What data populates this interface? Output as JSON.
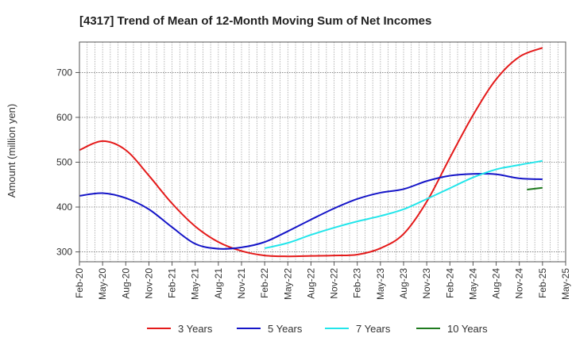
{
  "chart_data": {
    "type": "line",
    "title": "[4317]  Trend of Mean of 12-Month Moving Sum of Net Incomes",
    "ylabel": "Amount (million yen)",
    "xlabel": "",
    "ylim": [
      278,
      768
    ],
    "yticks": [
      300,
      400,
      500,
      600,
      700
    ],
    "x_start": "Feb-20",
    "x_end": "May-25",
    "xtick_labels": [
      "Feb-20",
      "May-20",
      "Aug-20",
      "Nov-20",
      "Feb-21",
      "May-21",
      "Aug-21",
      "Nov-21",
      "Feb-22",
      "May-22",
      "Aug-22",
      "Nov-22",
      "Feb-23",
      "May-23",
      "Aug-23",
      "Nov-23",
      "Feb-24",
      "May-24",
      "Aug-24",
      "Nov-24",
      "Feb-25",
      "May-25"
    ],
    "grid": true,
    "legend_position": "bottom",
    "series": [
      {
        "name": "3 Years",
        "color": "#e41a1a",
        "x": [
          "Feb-20",
          "May-20",
          "Aug-20",
          "Nov-20",
          "Feb-21",
          "May-21",
          "Aug-21",
          "Nov-21",
          "Feb-22",
          "May-22",
          "Aug-22",
          "Nov-22",
          "Feb-23",
          "May-23",
          "Aug-23",
          "Nov-23",
          "Feb-24",
          "May-24",
          "Aug-24",
          "Nov-24",
          "Feb-25"
        ],
        "values": [
          527,
          547,
          527,
          470,
          408,
          357,
          322,
          302,
          292,
          290,
          291,
          292,
          294,
          308,
          340,
          412,
          510,
          605,
          685,
          735,
          755
        ]
      },
      {
        "name": "5 Years",
        "color": "#1515c8",
        "x": [
          "Feb-20",
          "May-20",
          "Aug-20",
          "Nov-20",
          "Feb-21",
          "May-21",
          "Aug-21",
          "Nov-21",
          "Feb-22",
          "May-22",
          "Aug-22",
          "Nov-22",
          "Feb-23",
          "May-23",
          "Aug-23",
          "Nov-23",
          "Feb-24",
          "May-24",
          "Aug-24",
          "Nov-24",
          "Feb-25"
        ],
        "values": [
          425,
          431,
          420,
          395,
          355,
          318,
          307,
          310,
          322,
          346,
          372,
          397,
          418,
          432,
          440,
          458,
          470,
          474,
          473,
          464,
          462
        ]
      },
      {
        "name": "7 Years",
        "color": "#22e5ea",
        "x": [
          "Feb-22",
          "May-22",
          "Aug-22",
          "Nov-22",
          "Feb-23",
          "May-23",
          "Aug-23",
          "Nov-23",
          "Feb-24",
          "May-24",
          "Aug-24",
          "Nov-24",
          "Feb-25"
        ],
        "values": [
          308,
          320,
          338,
          354,
          368,
          380,
          395,
          418,
          442,
          466,
          484,
          494,
          503
        ]
      },
      {
        "name": "10 Years",
        "color": "#1e7a1e",
        "x": [
          "Dec-24",
          "Feb-25"
        ],
        "values": [
          439,
          443
        ]
      }
    ]
  }
}
